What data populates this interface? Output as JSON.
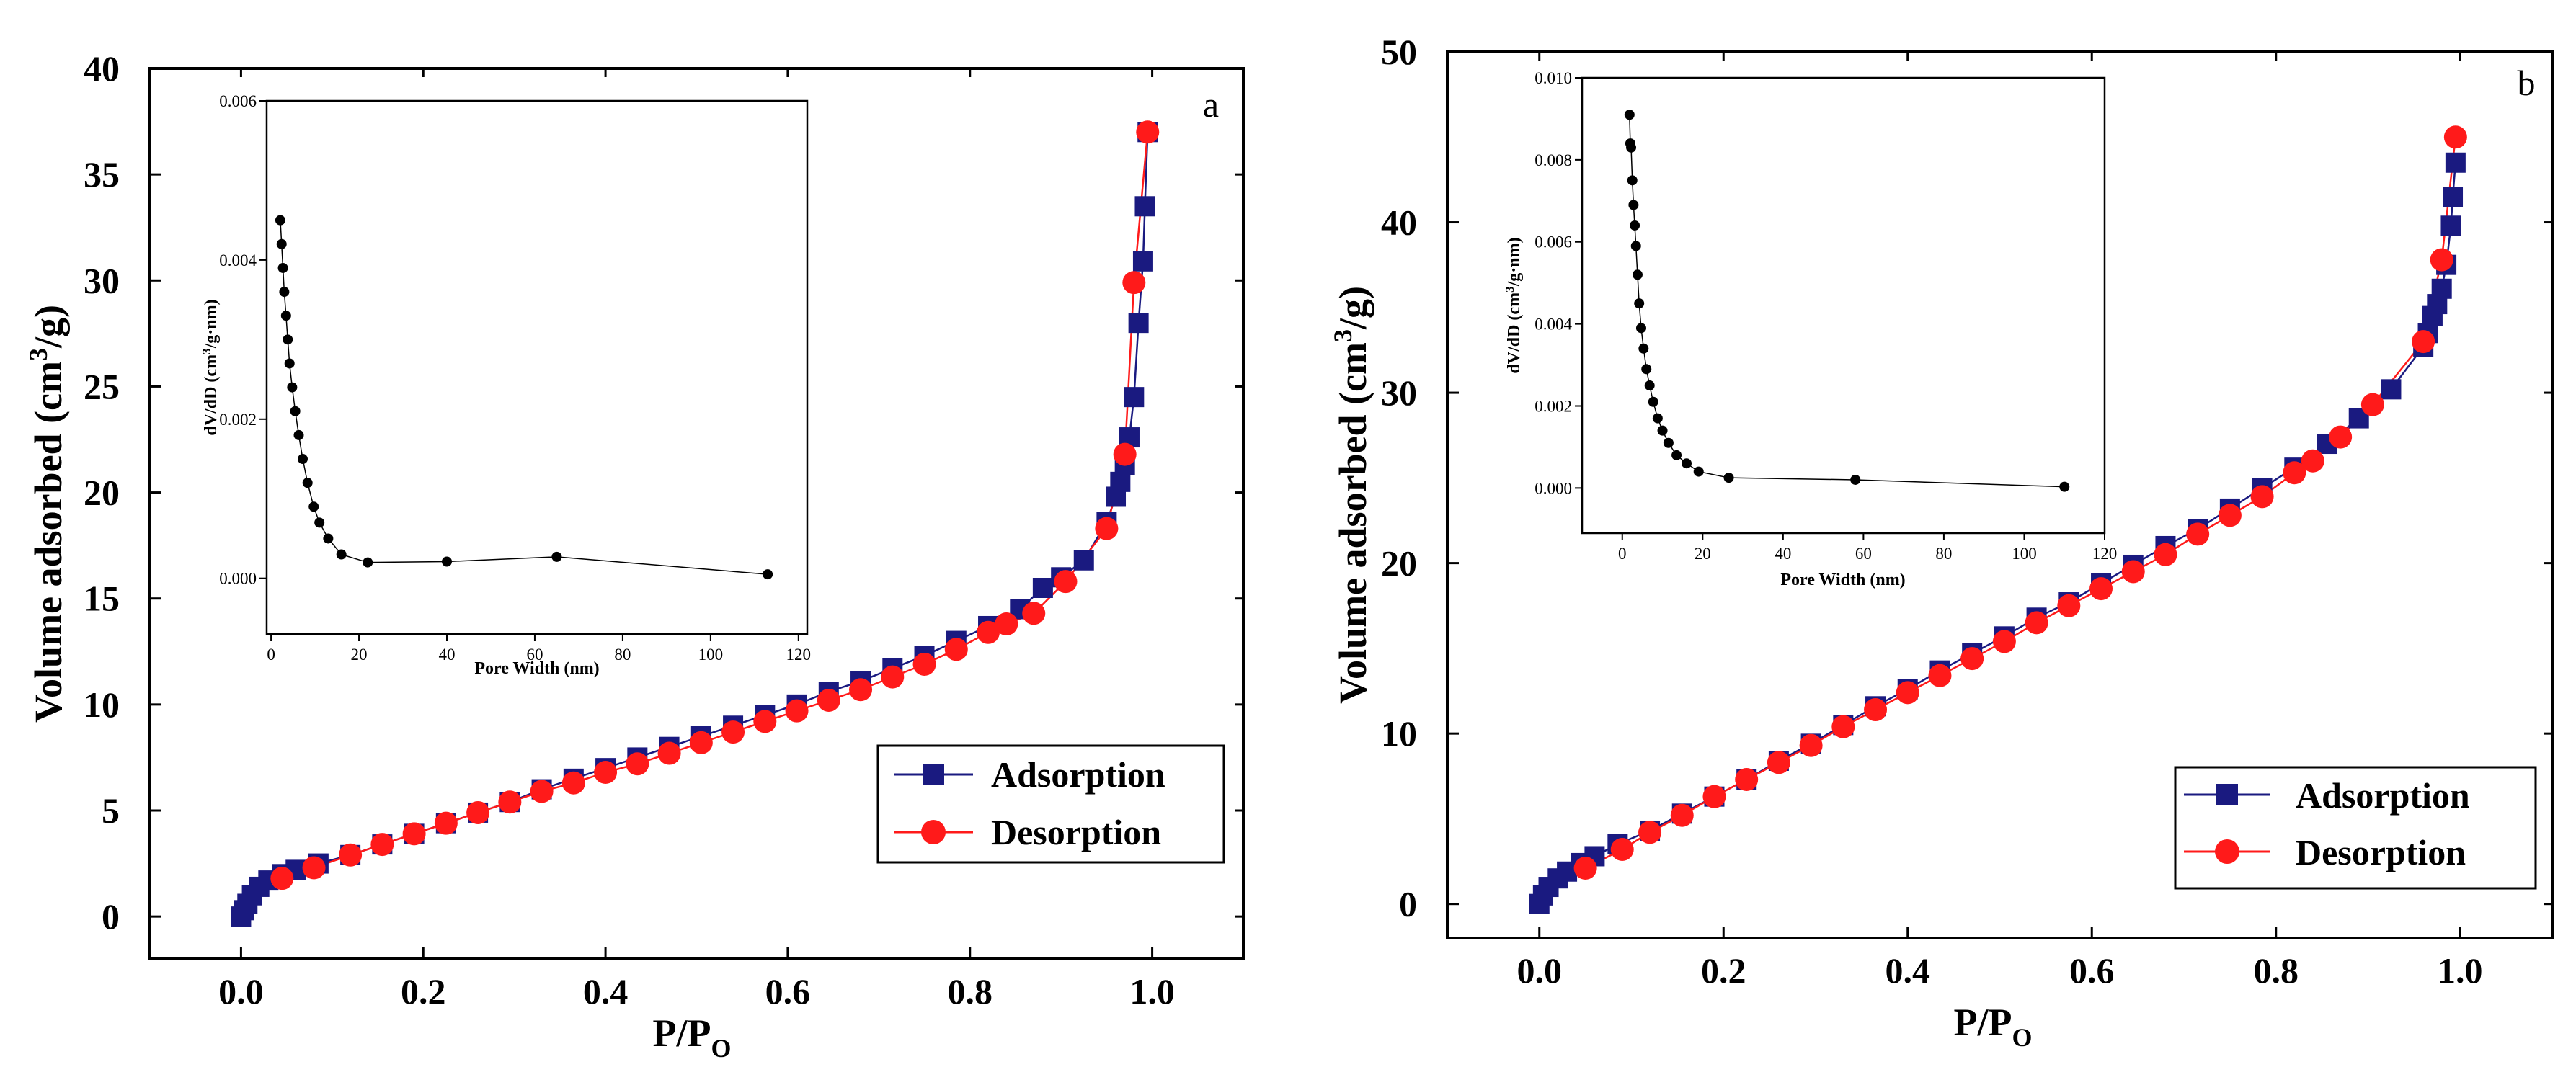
{
  "colors": {
    "adsorption": "#1a1a80",
    "desorption": "#ff1a1a",
    "inset": "#000000"
  },
  "chart_data": [
    {
      "type": "line",
      "panel_label": "a",
      "xlabel_main": "P/P",
      "xlabel_sub": "O",
      "ylabel_main": "Volume adsorbed (cm",
      "ylabel_sup": "3",
      "ylabel_tail": "/g)",
      "xlim": [
        -0.1,
        1.1
      ],
      "ylim": [
        -2,
        40
      ],
      "xticks": [
        "0.0",
        "0.2",
        "0.4",
        "0.6",
        "0.8",
        "1.0"
      ],
      "xtick_values": [
        0,
        0.2,
        0.4,
        0.6,
        0.8,
        1.0
      ],
      "yticks": [
        "0",
        "5",
        "10",
        "15",
        "20",
        "25",
        "30",
        "35",
        "40"
      ],
      "ytick_values": [
        0,
        5,
        10,
        15,
        20,
        25,
        30,
        35,
        40
      ],
      "legend_position": "bottom-right",
      "series": [
        {
          "name": "Adsorption",
          "marker": "square",
          "x": [
            0.0,
            0.003,
            0.007,
            0.012,
            0.02,
            0.03,
            0.045,
            0.06,
            0.085,
            0.12,
            0.155,
            0.19,
            0.225,
            0.26,
            0.295,
            0.33,
            0.365,
            0.4,
            0.435,
            0.47,
            0.505,
            0.54,
            0.575,
            0.61,
            0.645,
            0.68,
            0.715,
            0.75,
            0.785,
            0.82,
            0.855,
            0.88,
            0.9,
            0.925,
            0.95,
            0.96,
            0.965,
            0.97,
            0.975,
            0.98,
            0.985,
            0.99,
            0.992,
            0.995
          ],
          "y": [
            0.0,
            0.3,
            0.6,
            1.0,
            1.4,
            1.7,
            2.0,
            2.2,
            2.5,
            2.9,
            3.4,
            3.9,
            4.4,
            4.9,
            5.4,
            6.0,
            6.5,
            7.0,
            7.5,
            8.0,
            8.5,
            9.0,
            9.5,
            10.0,
            10.6,
            11.1,
            11.7,
            12.3,
            13.0,
            13.7,
            14.5,
            15.5,
            16.0,
            16.8,
            18.6,
            19.8,
            20.5,
            21.3,
            22.6,
            24.5,
            28.0,
            30.9,
            33.5,
            37.0
          ]
        },
        {
          "name": "Desorption",
          "marker": "circle",
          "x": [
            0.045,
            0.08,
            0.12,
            0.155,
            0.19,
            0.225,
            0.26,
            0.295,
            0.33,
            0.365,
            0.4,
            0.435,
            0.47,
            0.505,
            0.54,
            0.575,
            0.61,
            0.645,
            0.68,
            0.715,
            0.75,
            0.785,
            0.82,
            0.84,
            0.87,
            0.905,
            0.95,
            0.97,
            0.98,
            0.995
          ],
          "y": [
            1.8,
            2.3,
            2.9,
            3.4,
            3.9,
            4.4,
            4.9,
            5.4,
            5.9,
            6.3,
            6.8,
            7.2,
            7.7,
            8.2,
            8.7,
            9.2,
            9.7,
            10.2,
            10.7,
            11.3,
            11.9,
            12.6,
            13.4,
            13.8,
            14.3,
            15.8,
            18.3,
            21.8,
            29.9,
            37.0
          ]
        }
      ],
      "inset": {
        "type": "line",
        "xlabel": "Pore Width (nm)",
        "ylabel_main": "dV/dD (cm",
        "ylabel_sup": "3",
        "ylabel_tail": "/g·nm)",
        "xlim": [
          -1,
          122
        ],
        "ylim": [
          -0.0007,
          0.006
        ],
        "xticks": [
          "0",
          "20",
          "40",
          "60",
          "80",
          "100",
          "120"
        ],
        "xtick_values": [
          0,
          20,
          40,
          60,
          80,
          100,
          120
        ],
        "yticks": [
          "0.000",
          "0.002",
          "0.004",
          "0.006"
        ],
        "ytick_values": [
          0.0,
          0.002,
          0.004,
          0.006
        ],
        "x": [
          2.1,
          2.4,
          2.7,
          3.0,
          3.4,
          3.8,
          4.2,
          4.8,
          5.5,
          6.3,
          7.2,
          8.3,
          9.7,
          11.0,
          13.0,
          16.0,
          22.0,
          40.0,
          65.0,
          113.0
        ],
        "y": [
          0.0045,
          0.0042,
          0.0039,
          0.0036,
          0.0033,
          0.003,
          0.0027,
          0.0024,
          0.0021,
          0.0018,
          0.0015,
          0.0012,
          0.0009,
          0.0007,
          0.0005,
          0.0003,
          0.0002,
          0.00021,
          0.00027,
          5e-05
        ]
      }
    },
    {
      "type": "line",
      "panel_label": "b",
      "xlabel_main": "P/P",
      "xlabel_sub": "O",
      "ylabel_main": "Volume adsorbed (cm",
      "ylabel_sup": "3",
      "ylabel_tail": "/g)",
      "xlim": [
        -0.1,
        1.1
      ],
      "ylim": [
        -2,
        50
      ],
      "xticks": [
        "0.0",
        "0.2",
        "0.4",
        "0.6",
        "0.8",
        "1.0"
      ],
      "xtick_values": [
        0,
        0.2,
        0.4,
        0.6,
        0.8,
        1.0
      ],
      "yticks": [
        "0",
        "10",
        "20",
        "30",
        "40",
        "50"
      ],
      "ytick_values": [
        0,
        10,
        20,
        30,
        40,
        50
      ],
      "legend_position": "bottom-right",
      "series": [
        {
          "name": "Adsorption",
          "marker": "square",
          "x": [
            0.0,
            0.004,
            0.01,
            0.02,
            0.03,
            0.045,
            0.06,
            0.085,
            0.12,
            0.155,
            0.19,
            0.225,
            0.26,
            0.295,
            0.33,
            0.365,
            0.4,
            0.435,
            0.47,
            0.505,
            0.54,
            0.575,
            0.61,
            0.645,
            0.68,
            0.715,
            0.75,
            0.785,
            0.82,
            0.855,
            0.89,
            0.925,
            0.96,
            0.965,
            0.97,
            0.975,
            0.98,
            0.985,
            0.99,
            0.992,
            0.995
          ],
          "y": [
            0.0,
            0.5,
            1.0,
            1.5,
            1.9,
            2.4,
            2.8,
            3.5,
            4.3,
            5.3,
            6.3,
            7.3,
            8.4,
            9.4,
            10.5,
            11.6,
            12.6,
            13.7,
            14.7,
            15.7,
            16.8,
            17.7,
            18.8,
            19.9,
            21.0,
            22.0,
            23.2,
            24.4,
            25.6,
            27.0,
            28.5,
            30.2,
            32.7,
            33.5,
            34.5,
            35.2,
            36.1,
            37.5,
            39.8,
            41.5,
            43.5
          ]
        },
        {
          "name": "Desorption",
          "marker": "circle",
          "x": [
            0.05,
            0.09,
            0.12,
            0.155,
            0.19,
            0.225,
            0.26,
            0.295,
            0.33,
            0.365,
            0.4,
            0.435,
            0.47,
            0.505,
            0.54,
            0.575,
            0.61,
            0.645,
            0.68,
            0.715,
            0.75,
            0.785,
            0.82,
            0.84,
            0.87,
            0.905,
            0.96,
            0.98,
            0.995
          ],
          "y": [
            2.1,
            3.2,
            4.2,
            5.2,
            6.3,
            7.3,
            8.3,
            9.3,
            10.4,
            11.4,
            12.4,
            13.4,
            14.4,
            15.4,
            16.5,
            17.5,
            18.5,
            19.5,
            20.5,
            21.7,
            22.8,
            23.9,
            25.3,
            26.0,
            27.4,
            29.3,
            33.0,
            37.8,
            45.0
          ]
        }
      ],
      "inset": {
        "type": "line",
        "xlabel": "Pore Width (nm)",
        "ylabel_main": "dV/dD (cm",
        "ylabel_sup": "3",
        "ylabel_tail": "/g·nm)",
        "xlim": [
          -10,
          120
        ],
        "ylim": [
          -0.0011,
          0.01
        ],
        "xticks": [
          "0",
          "20",
          "40",
          "60",
          "80",
          "100",
          "120"
        ],
        "xtick_values": [
          0,
          20,
          40,
          60,
          80,
          100,
          120
        ],
        "yticks": [
          "0.000",
          "0.002",
          "0.004",
          "0.006",
          "0.008",
          "0.010"
        ],
        "ytick_values": [
          0.0,
          0.002,
          0.004,
          0.006,
          0.008,
          0.01
        ],
        "x": [
          1.8,
          2.0,
          2.2,
          2.5,
          2.8,
          3.1,
          3.4,
          3.8,
          4.2,
          4.7,
          5.3,
          6.0,
          6.8,
          7.7,
          8.8,
          10.0,
          11.5,
          13.5,
          16.0,
          19.0,
          26.5,
          58.0,
          110.0
        ],
        "y": [
          0.0091,
          0.0084,
          0.0083,
          0.0075,
          0.0069,
          0.0064,
          0.0059,
          0.0052,
          0.0045,
          0.0039,
          0.0034,
          0.0029,
          0.0025,
          0.0021,
          0.0017,
          0.0014,
          0.0011,
          0.0008,
          0.0006,
          0.0004,
          0.00025,
          0.0002,
          3e-05
        ]
      }
    }
  ]
}
